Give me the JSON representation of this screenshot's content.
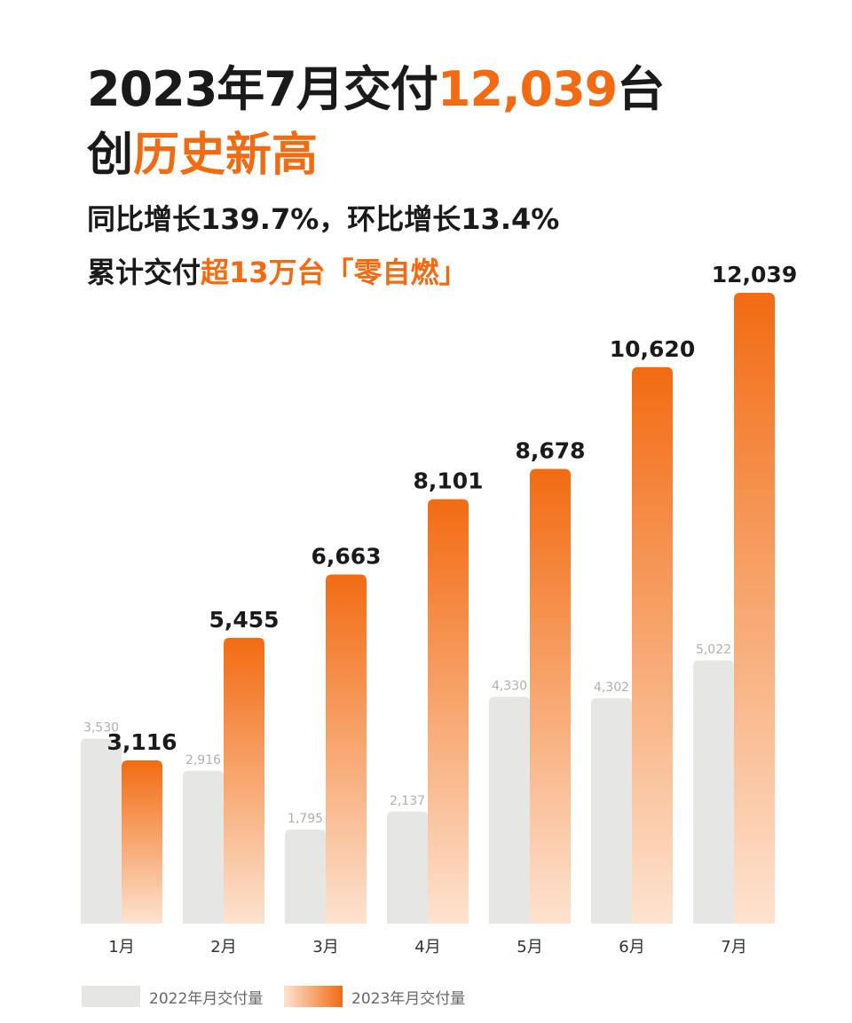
{
  "headline": {
    "line1_prefix": "2023年7月交付",
    "line1_value": "12,039",
    "line1_suffix": "台",
    "line2_prefix": "创",
    "line2_accent": "历史新高",
    "line3": "同比增长139.7%，环比增长13.4%",
    "line4_prefix": "累计交付",
    "line4_accent": "超13万台「零自燃」"
  },
  "chart_data": {
    "type": "bar",
    "categories": [
      "1月",
      "2月",
      "3月",
      "4月",
      "5月",
      "6月",
      "7月"
    ],
    "series": [
      {
        "name": "2022年月交付量",
        "values": [
          3530,
          2916,
          1795,
          2137,
          4330,
          4302,
          5022
        ],
        "labels": [
          "3,530",
          "2,916",
          "1,795",
          "2,137",
          "4,330",
          "4,302",
          "5,022"
        ],
        "color": "#e6e6e4"
      },
      {
        "name": "2023年月交付量",
        "values": [
          3116,
          5455,
          6663,
          8101,
          8678,
          10620,
          12039
        ],
        "labels": [
          "3,116",
          "5,455",
          "6,663",
          "8,101",
          "8,678",
          "10,620",
          "12,039"
        ],
        "color": "#f26b12"
      }
    ],
    "ylim": [
      0,
      12039
    ],
    "grid": false,
    "legend_position": "bottom-left"
  },
  "colors": {
    "accent": "#f26b12",
    "accent_light": "#fde3d0",
    "bar_2022": "#e6e6e4",
    "label_2022": "#b0b0b0",
    "text": "#1a1a1a"
  }
}
